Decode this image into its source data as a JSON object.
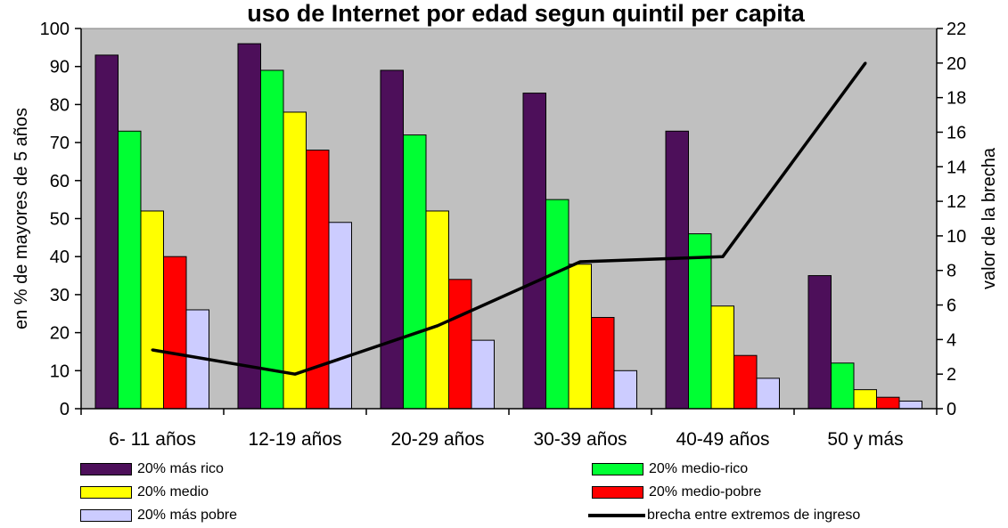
{
  "chart_data": {
    "type": "bar",
    "title": "uso de Internet por edad segun quintil per capita",
    "ylabel": "en % de mayores de 5 años",
    "y2label": "valor de la brecha",
    "ylim": [
      0,
      100
    ],
    "y2lim": [
      0,
      22
    ],
    "yticks": [
      "0",
      "10",
      "20",
      "30",
      "40",
      "50",
      "60",
      "70",
      "80",
      "90",
      "100"
    ],
    "y2ticks": [
      "0",
      "2",
      "4",
      "6",
      "8",
      "10",
      "12",
      "14",
      "16",
      "18",
      "20",
      "22"
    ],
    "categories": [
      "6- 11 años",
      "12-19 años",
      "20-29 años",
      "30-39 años",
      "40-49 años",
      "50 y más"
    ],
    "series": [
      {
        "name": "20% más rico",
        "color": "#4d0f5a",
        "values": [
          93,
          96,
          89,
          83,
          73,
          35
        ]
      },
      {
        "name": "20% medio-rico",
        "color": "#00ff33",
        "values": [
          73,
          89,
          72,
          55,
          46,
          12
        ]
      },
      {
        "name": "20% medio",
        "color": "#ffff00",
        "values": [
          52,
          78,
          52,
          38,
          27,
          5
        ]
      },
      {
        "name": "20% medio-pobre",
        "color": "#ff0000",
        "values": [
          40,
          68,
          34,
          24,
          14,
          3
        ]
      },
      {
        "name": "20% más pobre",
        "color": "#ccccff",
        "values": [
          26,
          49,
          18,
          10,
          8,
          2
        ]
      }
    ],
    "line": {
      "name": "brecha entre extremos de ingreso",
      "color": "#000000",
      "axis": "right",
      "values": [
        3.4,
        2.0,
        4.8,
        8.5,
        8.8,
        20.0
      ]
    },
    "grid": false,
    "plot_background": "#c0c0c0",
    "legend_position": "bottom"
  }
}
